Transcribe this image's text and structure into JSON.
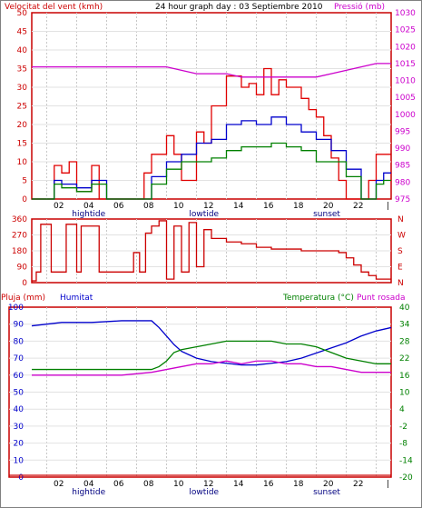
{
  "chart_data": [
    {
      "type": "line",
      "title": "24 hour graph day : 03 Septiembre 2010",
      "ylabel_left": "Velocitat del vent (kmh)",
      "ylabel_right": "Pressió (mb)",
      "ylim_left": [
        0,
        50
      ],
      "ylim_right": [
        975,
        1030
      ],
      "yticks_left": [
        "0",
        "5",
        "10",
        "15",
        "20",
        "25",
        "30",
        "35",
        "40",
        "45",
        "50"
      ],
      "yticks_right": [
        "975",
        "980",
        "985",
        "990",
        "995",
        "1000",
        "1005",
        "1010",
        "1015",
        "1020",
        "1025",
        "1030"
      ],
      "xticks": [
        "02",
        "04",
        "06",
        "08",
        "10",
        "12",
        "14",
        "16",
        "18",
        "20",
        "22",
        "|"
      ],
      "markers": [
        "hightide",
        "lowtide",
        "sunset"
      ],
      "grid": true,
      "colors": {
        "gust": "#e00000",
        "avg": "#0000cc",
        "min": "#008000",
        "pressure": "#cc00cc",
        "frame": "#c80000"
      },
      "series": [
        {
          "name": "gust",
          "x": [
            0,
            1,
            1.5,
            2,
            2.5,
            3,
            4,
            4.5,
            5,
            6,
            7,
            7.5,
            8,
            9,
            9.5,
            10,
            11,
            11.5,
            12,
            12.5,
            13,
            14,
            14.5,
            15,
            15.5,
            16,
            16.5,
            17,
            18,
            18.5,
            19,
            19.5,
            20,
            20.5,
            21,
            22,
            22.5,
            23,
            23.5,
            24
          ],
          "values": [
            0,
            0,
            9,
            7,
            10,
            2,
            9,
            0,
            0,
            0,
            0,
            7,
            12,
            17,
            12,
            5,
            18,
            15,
            25,
            25,
            33,
            30,
            31,
            28,
            35,
            28,
            32,
            30,
            27,
            24,
            22,
            17,
            11,
            5,
            0,
            0,
            5,
            12,
            12,
            12
          ]
        },
        {
          "name": "avg",
          "x": [
            0,
            1,
            1.5,
            2,
            3,
            4,
            5,
            6,
            7,
            8,
            9,
            10,
            11,
            12,
            13,
            14,
            15,
            16,
            17,
            18,
            19,
            20,
            21,
            22,
            23,
            23.5,
            24
          ],
          "values": [
            0,
            0,
            5,
            4,
            3,
            5,
            0,
            0,
            0,
            6,
            10,
            12,
            15,
            16,
            20,
            21,
            20,
            22,
            20,
            18,
            16,
            13,
            8,
            0,
            5,
            7,
            7
          ]
        },
        {
          "name": "min",
          "x": [
            0,
            1,
            1.5,
            2,
            3,
            4,
            5,
            6,
            7,
            8,
            9,
            10,
            11,
            12,
            13,
            14,
            15,
            16,
            17,
            18,
            19,
            20,
            21,
            22,
            23,
            23.5,
            24
          ],
          "values": [
            0,
            0,
            4,
            3,
            2,
            4,
            0,
            0,
            0,
            4,
            8,
            10,
            10,
            11,
            13,
            14,
            14,
            15,
            14,
            13,
            10,
            10,
            6,
            0,
            4,
            5,
            5
          ]
        },
        {
          "name": "pressure",
          "x": [
            0,
            4,
            8,
            9,
            10,
            11,
            12,
            13,
            14,
            15,
            16,
            17,
            18,
            19,
            20,
            21,
            22,
            23,
            24
          ],
          "values": [
            1014,
            1014,
            1014,
            1014,
            1013,
            1012,
            1012,
            1012,
            1011,
            1011,
            1011,
            1011,
            1011,
            1011,
            1012,
            1013,
            1014,
            1015,
            1015
          ]
        }
      ]
    },
    {
      "type": "line",
      "ylim": [
        0,
        360
      ],
      "yticks_left": [
        "0",
        "90",
        "180",
        "270",
        "360"
      ],
      "yticks_right": [
        "N",
        "E",
        "S",
        "W",
        "N"
      ],
      "grid": true,
      "series": [
        {
          "name": "direction",
          "x": [
            0,
            0.3,
            0.6,
            1,
            1.3,
            1.6,
            2.3,
            2.6,
            3,
            3.3,
            3.6,
            4,
            4.5,
            5,
            6,
            6.4,
            6.8,
            7.2,
            7.6,
            8,
            8.5,
            9,
            9.5,
            10,
            10.5,
            11,
            11.5,
            12,
            13,
            14,
            15,
            16,
            17,
            18,
            19,
            20,
            20.5,
            21,
            21.5,
            22,
            22.5,
            23,
            23.5,
            24
          ],
          "values": [
            10,
            60,
            330,
            330,
            60,
            60,
            330,
            330,
            60,
            320,
            320,
            320,
            60,
            60,
            60,
            60,
            170,
            60,
            280,
            320,
            350,
            20,
            320,
            60,
            340,
            90,
            300,
            250,
            230,
            220,
            200,
            190,
            190,
            180,
            180,
            180,
            170,
            140,
            100,
            60,
            40,
            20,
            20,
            20
          ]
        }
      ]
    },
    {
      "type": "line",
      "ylabel_left": "Pluja (mm)",
      "ylabel_left2": "Humitat",
      "ylabel_right": "Temperatura (°C)",
      "ylabel_right2": "Punt rosada",
      "ylim_left": [
        0,
        100
      ],
      "ylim_right": [
        -20,
        40
      ],
      "yticks_left": [
        "0",
        "10",
        "20",
        "30",
        "40",
        "50",
        "60",
        "70",
        "80",
        "90",
        "100"
      ],
      "yticks_right": [
        "-20",
        "-14",
        "-8",
        "-2",
        "4",
        "10",
        "16",
        "22",
        "28",
        "34",
        "40"
      ],
      "xticks": [
        "02",
        "04",
        "06",
        "08",
        "10",
        "12",
        "14",
        "16",
        "18",
        "20",
        "22",
        "|"
      ],
      "markers": [
        "hightide",
        "lowtide",
        "sunset"
      ],
      "grid": true,
      "series": [
        {
          "name": "rain",
          "x": [
            0,
            24
          ],
          "values": [
            0,
            0
          ]
        },
        {
          "name": "humidity",
          "x": [
            0,
            2,
            4,
            6,
            8,
            8.5,
            9,
            9.5,
            10,
            10.5,
            11,
            12,
            13,
            14,
            15,
            16,
            17,
            18,
            19,
            20,
            21,
            22,
            23,
            24
          ],
          "values": [
            89,
            91,
            91,
            92,
            92,
            88,
            83,
            78,
            74,
            72,
            70,
            68,
            67,
            66,
            66,
            67,
            68,
            70,
            73,
            76,
            79,
            83,
            86,
            88
          ]
        },
        {
          "name": "temperature",
          "x": [
            0,
            2,
            4,
            6,
            8,
            8.5,
            9,
            9.5,
            10,
            11,
            12,
            13,
            14,
            15,
            16,
            17,
            18,
            19,
            20,
            21,
            22,
            23,
            24
          ],
          "values": [
            18,
            18,
            18,
            18,
            18,
            19,
            21,
            24,
            25,
            26,
            27,
            28,
            28,
            28,
            28,
            27,
            27,
            26,
            24,
            22,
            21,
            20,
            20
          ]
        },
        {
          "name": "dewpoint",
          "x": [
            0,
            2,
            4,
            6,
            8,
            9,
            10,
            11,
            12,
            13,
            14,
            15,
            16,
            17,
            18,
            19,
            20,
            21,
            22,
            23,
            24
          ],
          "values": [
            16,
            16,
            16,
            16,
            17,
            18,
            19,
            20,
            20,
            21,
            20,
            21,
            21,
            20,
            20,
            19,
            19,
            18,
            17,
            17,
            17
          ]
        }
      ]
    }
  ]
}
